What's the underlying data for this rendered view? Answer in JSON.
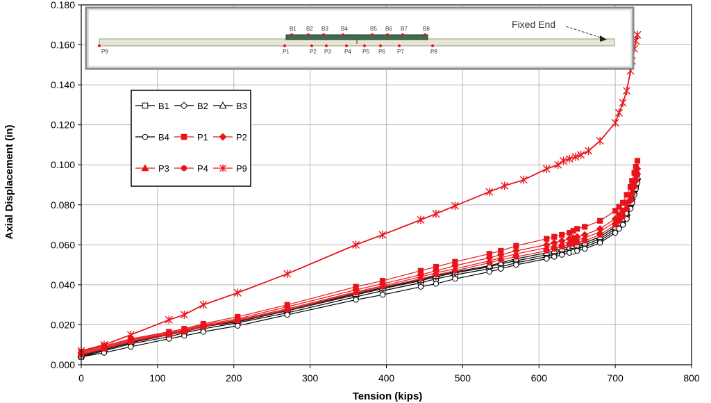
{
  "chart_data": {
    "type": "line",
    "title": "",
    "xlabel": "Tension (kips)",
    "ylabel": "Axial Displacement (in)",
    "xlim": [
      0,
      800
    ],
    "ylim": [
      0,
      0.18
    ],
    "xticks": [
      "0",
      "100",
      "200",
      "300",
      "400",
      "500",
      "600",
      "700",
      "800"
    ],
    "yticks": [
      "0.000",
      "0.020",
      "0.040",
      "0.060",
      "0.080",
      "0.100",
      "0.120",
      "0.140",
      "0.160",
      "0.180"
    ],
    "grid": true,
    "legend_position": "upper-left",
    "colors": {
      "black": "#000000",
      "red": "#e8141b"
    },
    "series": [
      {
        "name": "B1",
        "color": "#000000",
        "marker": "square-open",
        "x": [
          0,
          30,
          65,
          115,
          135,
          160,
          205,
          270,
          360,
          395,
          445,
          465,
          490,
          535,
          550,
          570,
          610,
          620,
          630,
          640,
          645,
          650,
          660,
          680,
          700,
          705,
          710,
          715,
          720,
          722,
          725,
          727,
          729
        ],
        "y": [
          0.004,
          0.007,
          0.0105,
          0.014,
          0.016,
          0.018,
          0.021,
          0.026,
          0.034,
          0.037,
          0.041,
          0.043,
          0.045,
          0.048,
          0.049,
          0.051,
          0.054,
          0.055,
          0.056,
          0.057,
          0.0575,
          0.058,
          0.059,
          0.062,
          0.067,
          0.069,
          0.071,
          0.074,
          0.079,
          0.082,
          0.086,
          0.089,
          0.092
        ]
      },
      {
        "name": "B2",
        "color": "#000000",
        "marker": "diamond-open",
        "x": [
          0,
          30,
          65,
          115,
          135,
          160,
          205,
          270,
          360,
          395,
          445,
          465,
          490,
          535,
          550,
          570,
          610,
          620,
          630,
          640,
          645,
          650,
          660,
          680,
          700,
          705,
          710,
          715,
          720,
          722,
          725,
          727,
          729
        ],
        "y": [
          0.0045,
          0.0075,
          0.011,
          0.015,
          0.0165,
          0.019,
          0.0215,
          0.027,
          0.035,
          0.038,
          0.042,
          0.044,
          0.046,
          0.049,
          0.0505,
          0.052,
          0.055,
          0.056,
          0.057,
          0.058,
          0.0585,
          0.059,
          0.06,
          0.063,
          0.068,
          0.07,
          0.072,
          0.075,
          0.08,
          0.083,
          0.087,
          0.09,
          0.093
        ]
      },
      {
        "name": "B3",
        "color": "#000000",
        "marker": "triangle-open",
        "x": [
          0,
          30,
          65,
          115,
          135,
          160,
          205,
          270,
          360,
          395,
          445,
          465,
          490,
          535,
          550,
          570,
          610,
          620,
          630,
          640,
          645,
          650,
          660,
          680,
          700,
          705,
          710,
          715,
          720,
          722,
          725,
          727,
          729
        ],
        "y": [
          0.005,
          0.008,
          0.0115,
          0.0155,
          0.017,
          0.0195,
          0.022,
          0.0275,
          0.0355,
          0.0385,
          0.0425,
          0.0445,
          0.0465,
          0.0495,
          0.051,
          0.053,
          0.056,
          0.057,
          0.058,
          0.059,
          0.0595,
          0.06,
          0.061,
          0.064,
          0.069,
          0.071,
          0.073,
          0.076,
          0.081,
          0.084,
          0.088,
          0.091,
          0.094
        ]
      },
      {
        "name": "B4",
        "color": "#000000",
        "marker": "circle-open",
        "x": [
          0,
          30,
          65,
          115,
          135,
          160,
          205,
          270,
          360,
          395,
          445,
          465,
          490,
          535,
          550,
          570,
          610,
          620,
          630,
          640,
          645,
          650,
          660,
          680,
          700,
          705,
          710,
          715,
          720,
          722,
          725,
          727,
          729
        ],
        "y": [
          0.004,
          0.006,
          0.009,
          0.013,
          0.0145,
          0.0165,
          0.0195,
          0.025,
          0.0325,
          0.035,
          0.039,
          0.0405,
          0.043,
          0.0465,
          0.048,
          0.05,
          0.053,
          0.054,
          0.055,
          0.056,
          0.0565,
          0.057,
          0.058,
          0.061,
          0.066,
          0.068,
          0.07,
          0.073,
          0.078,
          0.081,
          0.085,
          0.088,
          0.091
        ]
      },
      {
        "name": "P1",
        "color": "#e8141b",
        "marker": "square-filled",
        "x": [
          0,
          30,
          65,
          115,
          135,
          160,
          205,
          270,
          360,
          395,
          445,
          465,
          490,
          535,
          550,
          570,
          610,
          620,
          630,
          640,
          645,
          650,
          660,
          680,
          700,
          705,
          710,
          715,
          720,
          722,
          725,
          727,
          729
        ],
        "y": [
          0.0065,
          0.0095,
          0.013,
          0.0165,
          0.018,
          0.0205,
          0.024,
          0.03,
          0.039,
          0.042,
          0.047,
          0.049,
          0.0515,
          0.0555,
          0.057,
          0.0595,
          0.063,
          0.064,
          0.065,
          0.066,
          0.067,
          0.068,
          0.069,
          0.072,
          0.077,
          0.079,
          0.081,
          0.085,
          0.089,
          0.092,
          0.096,
          0.099,
          0.102
        ]
      },
      {
        "name": "P2",
        "color": "#e8141b",
        "marker": "diamond-filled",
        "x": [
          0,
          30,
          65,
          115,
          135,
          160,
          205,
          270,
          360,
          395,
          445,
          465,
          490,
          535,
          550,
          570,
          610,
          620,
          630,
          640,
          645,
          650,
          660,
          680,
          700,
          705,
          710,
          715,
          720,
          722,
          725,
          727,
          729
        ],
        "y": [
          0.006,
          0.009,
          0.0125,
          0.016,
          0.0175,
          0.02,
          0.023,
          0.029,
          0.0375,
          0.0405,
          0.045,
          0.047,
          0.0495,
          0.0535,
          0.055,
          0.057,
          0.06,
          0.061,
          0.062,
          0.063,
          0.0635,
          0.064,
          0.065,
          0.068,
          0.073,
          0.075,
          0.077,
          0.081,
          0.085,
          0.088,
          0.092,
          0.095,
          0.098
        ]
      },
      {
        "name": "P3",
        "color": "#e8141b",
        "marker": "triangle-filled",
        "x": [
          0,
          30,
          65,
          115,
          135,
          160,
          205,
          270,
          360,
          395,
          445,
          465,
          490,
          535,
          550,
          570,
          610,
          620,
          630,
          640,
          645,
          650,
          660,
          680,
          700,
          705,
          710,
          715,
          720,
          722,
          725,
          727,
          729
        ],
        "y": [
          0.0055,
          0.0085,
          0.012,
          0.0155,
          0.017,
          0.0195,
          0.0225,
          0.028,
          0.0365,
          0.0395,
          0.044,
          0.046,
          0.048,
          0.052,
          0.0535,
          0.0555,
          0.0585,
          0.0595,
          0.0605,
          0.0615,
          0.062,
          0.0625,
          0.0635,
          0.0665,
          0.0715,
          0.0735,
          0.0755,
          0.079,
          0.0835,
          0.0865,
          0.0905,
          0.0935,
          0.0965
        ]
      },
      {
        "name": "P4",
        "color": "#e8141b",
        "marker": "circle-filled",
        "x": [
          0,
          30,
          65,
          115,
          135,
          160,
          205,
          270,
          360,
          395,
          445,
          465,
          490,
          535,
          550,
          570,
          610,
          620,
          630,
          640,
          645,
          650,
          660,
          680,
          700,
          705,
          710,
          715,
          720,
          722,
          725,
          727,
          729
        ],
        "y": [
          0.005,
          0.008,
          0.0115,
          0.015,
          0.0165,
          0.019,
          0.022,
          0.0275,
          0.036,
          0.039,
          0.043,
          0.045,
          0.047,
          0.051,
          0.0525,
          0.054,
          0.057,
          0.058,
          0.059,
          0.06,
          0.0605,
          0.061,
          0.062,
          0.065,
          0.07,
          0.072,
          0.074,
          0.078,
          0.082,
          0.085,
          0.089,
          0.092,
          0.095
        ]
      },
      {
        "name": "P9",
        "color": "#e8141b",
        "marker": "star",
        "x": [
          0,
          30,
          65,
          115,
          135,
          160,
          205,
          270,
          360,
          395,
          445,
          465,
          490,
          535,
          555,
          580,
          610,
          625,
          632,
          640,
          648,
          655,
          665,
          680,
          700,
          705,
          710,
          715,
          720,
          722,
          725,
          727,
          729
        ],
        "y": [
          0.007,
          0.01,
          0.015,
          0.0225,
          0.025,
          0.03,
          0.036,
          0.0455,
          0.06,
          0.065,
          0.0725,
          0.0755,
          0.0795,
          0.0865,
          0.0895,
          0.0925,
          0.098,
          0.1,
          0.102,
          0.103,
          0.104,
          0.105,
          0.107,
          0.112,
          0.121,
          0.126,
          0.131,
          0.137,
          0.147,
          0.152,
          0.158,
          0.162,
          0.165
        ]
      }
    ]
  },
  "inset": {
    "fixed_end_label": "Fixed End",
    "top_labels": [
      "B1",
      "B2",
      "B3",
      "B4",
      "B5",
      "B6",
      "B7",
      "B8"
    ],
    "bottom_labels": [
      "P9",
      "P1",
      "P2",
      "P3",
      "P4",
      "P5",
      "P6",
      "P7",
      "P8"
    ]
  }
}
